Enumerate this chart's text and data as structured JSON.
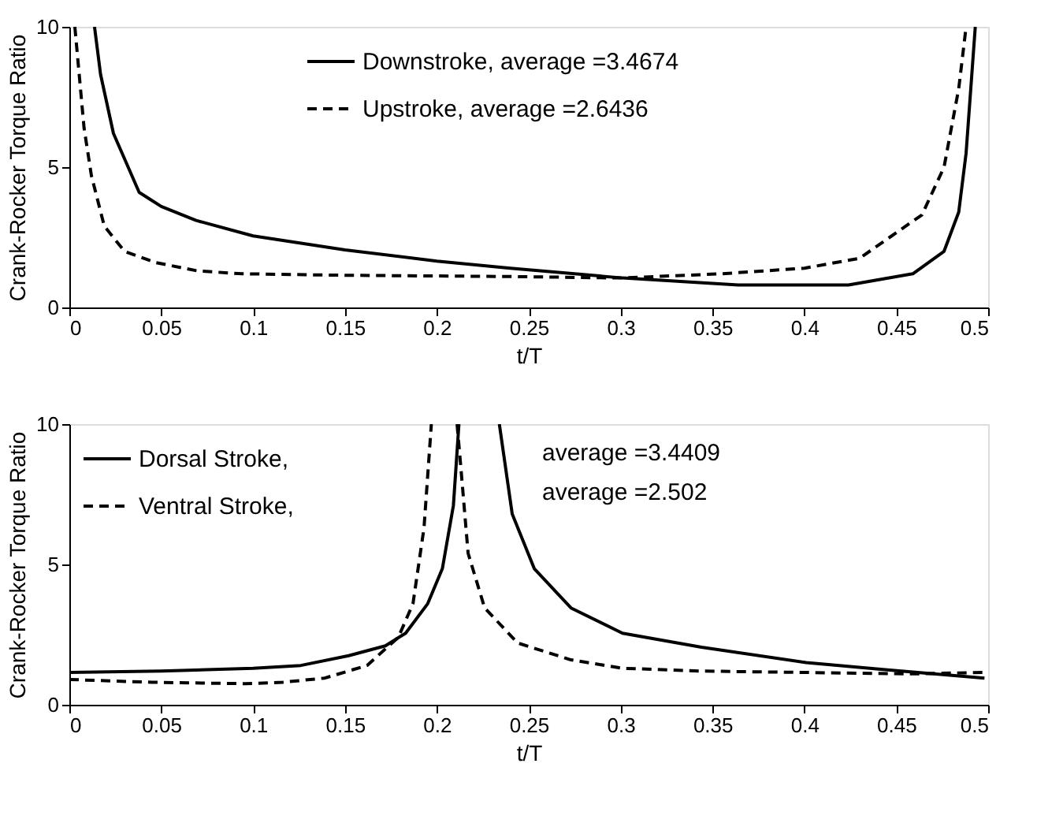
{
  "chart_data": [
    {
      "type": "line",
      "xlabel": "t/T",
      "ylabel": "Crank-Rocker Torque Ratio",
      "xlim": [
        0,
        0.5
      ],
      "ylim": [
        0,
        10
      ],
      "xticks": [
        0,
        0.05,
        0.1,
        0.15,
        0.2,
        0.25,
        0.3,
        0.35,
        0.4,
        0.45,
        0.5
      ],
      "yticks": [
        0,
        5,
        10
      ],
      "grid": false,
      "legend": "top",
      "marker": "none",
      "series": [
        {
          "name": "Downstroke, average =3.4674",
          "color": "#000000",
          "line_style": "solid",
          "x": [
            0.0137,
            0.017,
            0.024,
            0.038,
            0.05,
            0.069,
            0.1,
            0.15,
            0.2,
            0.24,
            0.301,
            0.364,
            0.424,
            0.459,
            0.476,
            0.484,
            0.488,
            0.491,
            0.493
          ],
          "values": [
            10,
            8.3,
            6.2,
            4.1,
            3.6,
            3.1,
            2.55,
            2.05,
            1.65,
            1.4,
            1.05,
            0.8,
            0.8,
            1.2,
            2.0,
            3.4,
            5.5,
            8.2,
            10
          ]
        },
        {
          "name": "Upstroke, average =2.6436",
          "color": "#000000",
          "line_style": "dashed",
          "x": [
            0.003,
            0.008,
            0.012,
            0.019,
            0.03,
            0.047,
            0.07,
            0.094,
            0.145,
            0.24,
            0.3,
            0.355,
            0.4,
            0.43,
            0.464,
            0.476,
            0.484,
            0.488
          ],
          "values": [
            10,
            6.4,
            4.7,
            2.9,
            2.0,
            1.6,
            1.3,
            1.2,
            1.15,
            1.1,
            1.05,
            1.2,
            1.4,
            1.75,
            3.3,
            5.0,
            7.8,
            10
          ]
        }
      ]
    },
    {
      "type": "line",
      "xlabel": "t/T",
      "ylabel": "Crank-Rocker Torque Ratio",
      "xlim": [
        0,
        0.5
      ],
      "ylim": [
        0,
        10
      ],
      "xticks": [
        0,
        0.05,
        0.1,
        0.15,
        0.2,
        0.25,
        0.3,
        0.35,
        0.4,
        0.45,
        0.5
      ],
      "yticks": [
        0,
        5,
        10
      ],
      "grid": false,
      "legend": "top left",
      "marker": "none",
      "annotations": [
        "average =3.4409",
        "average =2.502"
      ],
      "series": [
        {
          "name": "Dorsal Stroke,",
          "color": "#000000",
          "line_style": "solid",
          "x": [
            0,
            0.05,
            0.1,
            0.126,
            0.152,
            0.172,
            0.183,
            0.195,
            0.203,
            0.209,
            0.212,
            null,
            0.234,
            0.241,
            0.253,
            0.273,
            0.301,
            0.344,
            0.401,
            0.444,
            0.498
          ],
          "values": [
            1.15,
            1.2,
            1.3,
            1.4,
            1.75,
            2.1,
            2.55,
            3.6,
            4.85,
            7.1,
            10,
            null,
            10,
            6.8,
            4.85,
            3.45,
            2.55,
            2.05,
            1.5,
            1.25,
            0.95
          ]
        },
        {
          "name": "Ventral Stroke,",
          "color": "#000000",
          "line_style": "dashed",
          "x": [
            0,
            0.045,
            0.096,
            0.116,
            0.139,
            0.162,
            0.179,
            0.187,
            0.193,
            0.197,
            null,
            0.211,
            0.213,
            0.217,
            0.226,
            0.244,
            0.273,
            0.301,
            0.344,
            0.401,
            0.458,
            0.498
          ],
          "values": [
            0.9,
            0.8,
            0.75,
            0.8,
            0.95,
            1.4,
            2.4,
            3.6,
            6.3,
            10,
            null,
            10,
            8.5,
            5.4,
            3.45,
            2.2,
            1.6,
            1.3,
            1.2,
            1.15,
            1.1,
            1.15
          ]
        }
      ]
    }
  ]
}
